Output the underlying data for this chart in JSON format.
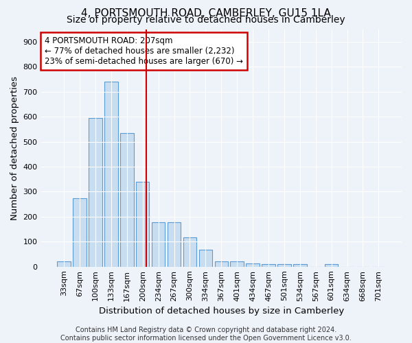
{
  "title": "4, PORTSMOUTH ROAD, CAMBERLEY, GU15 1LA",
  "subtitle": "Size of property relative to detached houses in Camberley",
  "xlabel": "Distribution of detached houses by size in Camberley",
  "ylabel": "Number of detached properties",
  "bar_labels": [
    "33sqm",
    "67sqm",
    "100sqm",
    "133sqm",
    "167sqm",
    "200sqm",
    "234sqm",
    "267sqm",
    "300sqm",
    "334sqm",
    "367sqm",
    "401sqm",
    "434sqm",
    "467sqm",
    "501sqm",
    "534sqm",
    "567sqm",
    "601sqm",
    "634sqm",
    "668sqm",
    "701sqm"
  ],
  "bar_values": [
    22,
    275,
    595,
    740,
    535,
    340,
    178,
    178,
    118,
    68,
    22,
    22,
    12,
    10,
    10,
    10,
    0,
    10,
    0,
    0,
    0
  ],
  "bar_color": "#c9ddf0",
  "bar_edge_color": "#5b9bd5",
  "annotation_line1": "4 PORTSMOUTH ROAD: 207sqm",
  "annotation_line2": "← 77% of detached houses are smaller (2,232)",
  "annotation_line3": "23% of semi-detached houses are larger (670) →",
  "annotation_box_color": "#ffffff",
  "annotation_box_edge": "#cc0000",
  "vline_color": "#cc0000",
  "vline_x_index": 5.21,
  "ylim": [
    0,
    950
  ],
  "yticks": [
    0,
    100,
    200,
    300,
    400,
    500,
    600,
    700,
    800,
    900
  ],
  "footer_line1": "Contains HM Land Registry data © Crown copyright and database right 2024.",
  "footer_line2": "Contains public sector information licensed under the Open Government Licence v3.0.",
  "bg_color": "#eef2f9",
  "grid_color": "#ffffff",
  "title_fontsize": 11,
  "subtitle_fontsize": 10,
  "axis_label_fontsize": 9.5,
  "tick_fontsize": 8,
  "annotation_fontsize": 8.5,
  "footer_fontsize": 7
}
